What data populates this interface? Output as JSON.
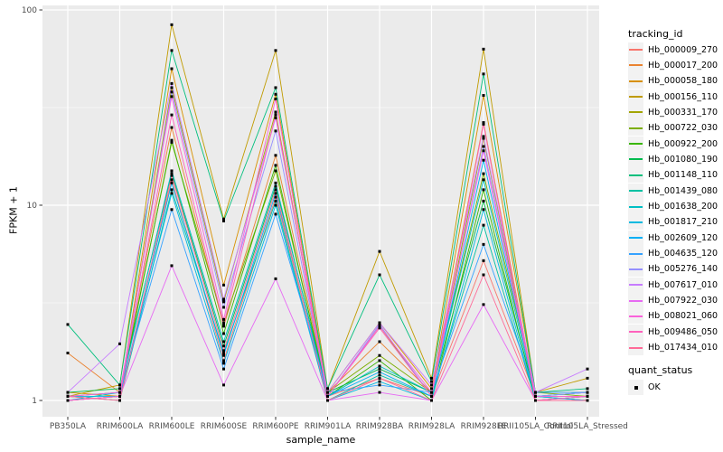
{
  "chart_data": {
    "type": "line",
    "title": "",
    "xlabel": "sample_name",
    "ylabel": "FPKM + 1",
    "y_scale": "log10",
    "ylim": [
      1,
      100
    ],
    "y_ticks": [
      "1",
      "10",
      "100"
    ],
    "y_tick_values": [
      1,
      10,
      100
    ],
    "y_minor_values": [
      3.1623,
      31.623
    ],
    "grid": "on",
    "legend_position": "right",
    "legend_title": "tracking_id",
    "quant_legend": {
      "title": "quant_status",
      "items": [
        "OK"
      ]
    },
    "marker": {
      "shape": "small-black-point",
      "color": "#000000"
    },
    "colors": {
      "panel_bg": "#EBEBEB",
      "grid": "#FFFFFF",
      "tick_label": "#4D4D4D",
      "tick_mark": "#333333",
      "legend_key_bg": "#F2F2F2"
    },
    "x_categories": [
      "PB350LA",
      "RRIM600LA",
      "RRIM600LE",
      "RRIM600SE",
      "RRIM600PE",
      "RRIM901LA",
      "RRIM928BA",
      "RRIM928LA",
      "RRIM928LE",
      "RRII105LA_Control",
      "RRII105LA_Stressed"
    ],
    "series": [
      {
        "name": "Hb_000009_270",
        "color": "#F8766D",
        "values": [
          1.05,
          1.0,
          13.5,
          1.6,
          11.0,
          1.05,
          1.3,
          1.05,
          5.2,
          1.05,
          1.0
        ]
      },
      {
        "name": "Hb_000017_200",
        "color": "#EA8331",
        "values": [
          1.75,
          1.1,
          25.0,
          2.4,
          18.0,
          1.1,
          2.0,
          1.1,
          26.5,
          1.05,
          1.05
        ]
      },
      {
        "name": "Hb_000058_180",
        "color": "#D89000",
        "values": [
          1.1,
          1.05,
          50.0,
          3.9,
          37.0,
          1.1,
          2.5,
          1.15,
          36.5,
          1.1,
          1.1
        ]
      },
      {
        "name": "Hb_000156_110",
        "color": "#C09B00",
        "values": [
          1.05,
          1.2,
          84.0,
          8.5,
          62.0,
          1.15,
          5.8,
          1.3,
          63.0,
          1.1,
          1.3
        ]
      },
      {
        "name": "Hb_000331_170",
        "color": "#A3A500",
        "values": [
          1.0,
          1.05,
          40.0,
          3.2,
          30.0,
          1.05,
          2.4,
          1.05,
          22.0,
          1.05,
          1.0
        ]
      },
      {
        "name": "Hb_000722_030",
        "color": "#7CAE00",
        "values": [
          1.05,
          1.1,
          21.0,
          2.5,
          15.0,
          1.1,
          1.7,
          1.1,
          14.5,
          1.1,
          1.05
        ]
      },
      {
        "name": "Hb_000922_200",
        "color": "#39B600",
        "values": [
          1.0,
          1.05,
          21.5,
          2.2,
          16.0,
          1.05,
          1.6,
          1.0,
          12.0,
          1.0,
          1.05
        ]
      },
      {
        "name": "Hb_001080_190",
        "color": "#00BB4E",
        "values": [
          1.1,
          1.15,
          14.5,
          1.9,
          12.5,
          1.1,
          1.45,
          1.1,
          10.5,
          1.05,
          1.1
        ]
      },
      {
        "name": "Hb_001148_110",
        "color": "#00BF7D",
        "values": [
          2.45,
          1.2,
          62.0,
          8.3,
          40.0,
          1.15,
          4.4,
          1.25,
          47.0,
          1.1,
          1.15
        ]
      },
      {
        "name": "Hb_001439_080",
        "color": "#00C1A3",
        "values": [
          1.05,
          1.0,
          12.0,
          1.75,
          10.5,
          1.0,
          1.35,
          1.05,
          7.9,
          1.0,
          1.0
        ]
      },
      {
        "name": "Hb_001638_200",
        "color": "#00BFC4",
        "values": [
          1.0,
          1.1,
          15.0,
          2.0,
          13.0,
          1.05,
          1.5,
          1.1,
          13.5,
          1.05,
          1.1
        ]
      },
      {
        "name": "Hb_001817_210",
        "color": "#00BAE0",
        "values": [
          1.05,
          1.05,
          11.5,
          1.55,
          10.0,
          1.0,
          1.25,
          1.0,
          9.5,
          1.0,
          1.05
        ]
      },
      {
        "name": "Hb_002609_120",
        "color": "#00B0F6",
        "values": [
          1.0,
          1.05,
          13.0,
          1.7,
          11.5,
          1.05,
          1.4,
          1.05,
          17.0,
          1.05,
          1.0
        ]
      },
      {
        "name": "Hb_004635_120",
        "color": "#35A2FF",
        "values": [
          1.05,
          1.1,
          9.5,
          1.45,
          9.0,
          1.1,
          1.2,
          1.1,
          6.3,
          1.1,
          1.1
        ]
      },
      {
        "name": "Hb_005276_140",
        "color": "#9590FF",
        "values": [
          1.0,
          1.05,
          38.0,
          3.0,
          24.0,
          1.05,
          2.45,
          1.05,
          20.0,
          1.05,
          1.1
        ]
      },
      {
        "name": "Hb_007617_010",
        "color": "#C77CFF",
        "values": [
          1.1,
          1.95,
          42.0,
          3.3,
          28.0,
          1.1,
          2.5,
          1.2,
          22.5,
          1.1,
          1.45
        ]
      },
      {
        "name": "Hb_007922_030",
        "color": "#E76BF3",
        "values": [
          1.0,
          1.05,
          4.9,
          1.2,
          4.2,
          1.0,
          1.1,
          1.0,
          3.1,
          1.0,
          1.0
        ]
      },
      {
        "name": "Hb_008021_060",
        "color": "#FA62DB",
        "values": [
          1.05,
          1.1,
          36.0,
          2.6,
          35.0,
          1.05,
          2.4,
          1.1,
          19.0,
          1.05,
          1.05
        ]
      },
      {
        "name": "Hb_009486_050",
        "color": "#FF62BC",
        "values": [
          1.0,
          1.05,
          29.0,
          2.45,
          29.0,
          1.05,
          2.35,
          1.05,
          26.0,
          1.0,
          1.05
        ]
      },
      {
        "name": "Hb_017434_010",
        "color": "#FF6A98",
        "values": [
          1.05,
          1.0,
          14.2,
          1.8,
          12.0,
          1.0,
          1.3,
          1.0,
          4.4,
          1.0,
          1.0
        ]
      }
    ]
  }
}
